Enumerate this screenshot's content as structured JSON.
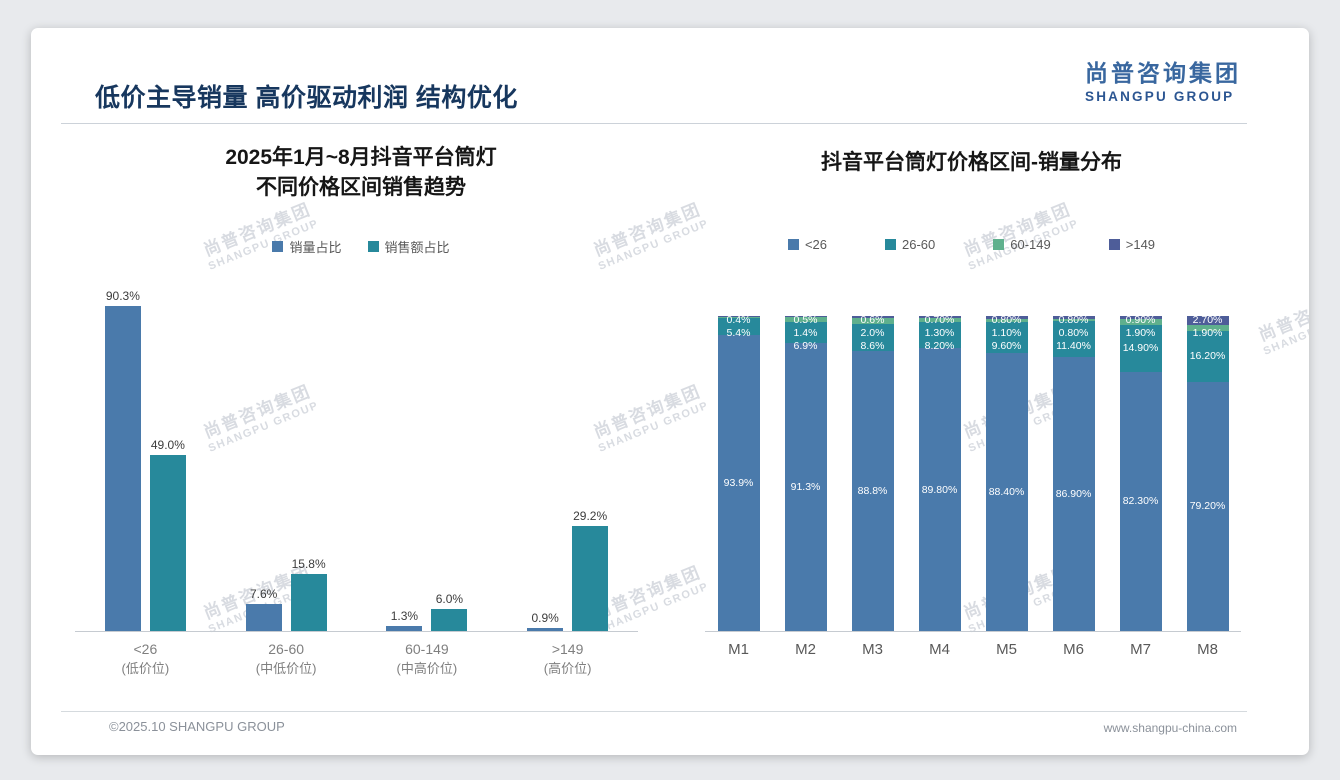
{
  "page": {
    "title": "低价主导销量 高价驱动利润 结构优化",
    "footer_left": "©2025.10 SHANGPU GROUP",
    "footer_right": "www.shangpu-china.com"
  },
  "logo": {
    "cn": "尚普咨询集团",
    "en": "SHANGPU GROUP"
  },
  "watermark": {
    "line1": "尚普咨询集团",
    "line2": "SHANGPU GROUP"
  },
  "colors": {
    "blue": "#4a7aab",
    "teal": "#27899b",
    "green": "#5fb08d",
    "slate": "#4e5d99",
    "title_navy": "#17375e"
  },
  "chart_data": [
    {
      "type": "bar",
      "title_line1": "2025年1月~8月抖音平台筒灯",
      "title_line2": "不同价格区间销售趋势",
      "categories": [
        [
          "<26",
          "(低价位)"
        ],
        [
          "26-60",
          "(中低价位)"
        ],
        [
          "60-149",
          "(中高价位)"
        ],
        [
          ">149",
          "(高价位)"
        ]
      ],
      "series": [
        {
          "name": "销量占比",
          "color_key": "blue",
          "values": [
            90.3,
            7.6,
            1.3,
            0.9
          ],
          "labels": [
            "90.3%",
            "7.6%",
            "1.3%",
            "0.9%"
          ]
        },
        {
          "name": "销售额占比",
          "color_key": "teal",
          "values": [
            49.0,
            15.8,
            6.0,
            29.2
          ],
          "labels": [
            "49.0%",
            "15.8%",
            "6.0%",
            "29.2%"
          ]
        }
      ],
      "ylim": [
        0,
        100
      ],
      "grid": false,
      "legend_position": "top"
    },
    {
      "type": "stacked-bar",
      "title": "抖音平台筒灯价格区间-销量分布",
      "categories": [
        "M1",
        "M2",
        "M3",
        "M4",
        "M5",
        "M6",
        "M7",
        "M8"
      ],
      "series": [
        {
          "name": "<26",
          "color_key": "blue",
          "values": [
            93.9,
            91.3,
            88.8,
            89.8,
            88.4,
            86.9,
            82.3,
            79.2
          ],
          "labels": [
            "93.9%",
            "91.3%",
            "88.8%",
            "89.80%",
            "88.40%",
            "86.90%",
            "82.30%",
            "79.20%"
          ]
        },
        {
          "name": "26-60",
          "color_key": "teal",
          "values": [
            5.4,
            6.9,
            8.6,
            8.2,
            9.6,
            11.4,
            14.9,
            16.2
          ],
          "labels": [
            "5.4%",
            "6.9%",
            "8.6%",
            "8.20%",
            "9.60%",
            "11.40%",
            "14.90%",
            "16.20%"
          ]
        },
        {
          "name": "60-149",
          "color_key": "green",
          "values": [
            0.3,
            1.4,
            2.0,
            1.3,
            1.1,
            0.8,
            1.9,
            1.9
          ],
          "labels": [
            "",
            "1.4%",
            "2.0%",
            "1.30%",
            "1.10%",
            "0.80%",
            "1.90%",
            "1.90%"
          ]
        },
        {
          "name": ">149",
          "color_key": "slate",
          "values": [
            0.4,
            0.5,
            0.6,
            0.7,
            0.8,
            0.8,
            0.9,
            2.7
          ],
          "labels": [
            "0.4%",
            "0.5%",
            "0.6%",
            "0.70%",
            "0.80%",
            "0.80%",
            "0.90%",
            "2.70%"
          ]
        }
      ],
      "ylim": [
        0,
        100
      ],
      "grid": false,
      "legend_position": "top"
    }
  ]
}
